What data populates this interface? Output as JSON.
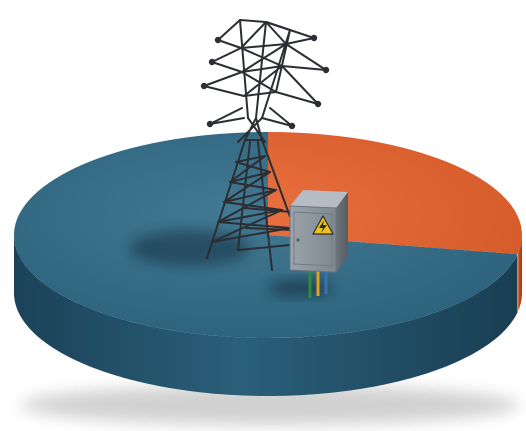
{
  "chart_data": {
    "type": "pie",
    "style": "3d-disc",
    "title": "",
    "slices": [
      {
        "value": 72,
        "color": "#2E6A86",
        "side_color": "#1F4D63"
      },
      {
        "value": 28,
        "color": "#E8612A",
        "side_color": "#B84718"
      }
    ],
    "legend": "none",
    "data_labels": "none"
  },
  "illustration": {
    "tower_icon": "transmission-tower-icon",
    "tower_color": "#2B2E33",
    "box_icon": "electrical-panel-icon",
    "box_color": "#8C959E",
    "warning_icon": "high-voltage-warning-icon",
    "warning_color": "#F2C21A",
    "wire_colors": [
      "#2E8B3A",
      "#E0A21A",
      "#3B6FB0"
    ]
  }
}
